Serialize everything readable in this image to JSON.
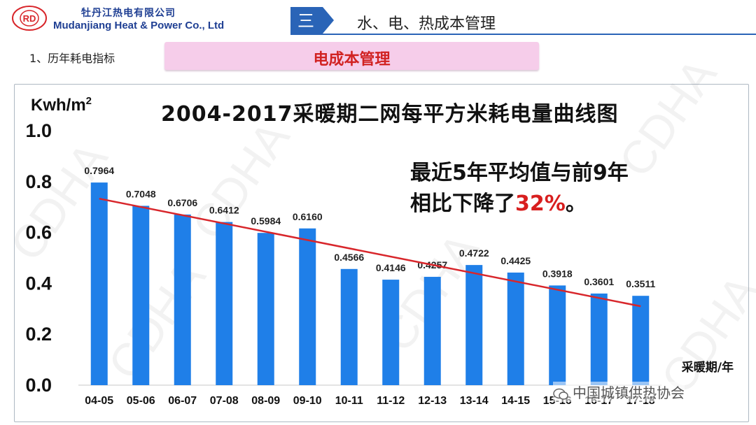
{
  "header": {
    "logo_text": "RD",
    "company_cn": "牡丹江热电有限公司",
    "company_en": "Mudanjiang Heat & Power  Co., Ltd",
    "section_numeral": "三",
    "section_title": "水、电、热成本管理"
  },
  "subtitle_left": "1、历年耗电指标",
  "pink_title": "电成本管理",
  "watermark_text": "CDHA",
  "wechat_label": "中国城镇供热协会",
  "colors": {
    "bar": "#1f7fe8",
    "trend": "#d8262b",
    "accent_red": "#d81e1e",
    "brand_blue": "#1f3f93"
  },
  "chart_data": {
    "type": "bar",
    "title": "2004-2017采暖期二网每平方米耗电量曲线图",
    "ylabel": "Kwh/m",
    "ylabel_sup": "2",
    "xlabel": "采暖期/年",
    "ylim": [
      0,
      1.0
    ],
    "yticks": [
      "0.0",
      "0.2",
      "0.4",
      "0.6",
      "0.8",
      "1.0"
    ],
    "categories": [
      "04-05",
      "05-06",
      "06-07",
      "07-08",
      "08-09",
      "09-10",
      "10-11",
      "11-12",
      "12-13",
      "13-14",
      "14-15",
      "15-16",
      "16-17",
      "17-18"
    ],
    "values": [
      0.7964,
      0.7048,
      0.6706,
      0.6412,
      0.5984,
      0.616,
      0.4566,
      0.4146,
      0.4257,
      0.4722,
      0.4425,
      0.3918,
      0.3601,
      0.3511
    ],
    "value_labels": [
      "0.7964",
      "0.7048",
      "0.6706",
      "0.6412",
      "0.5984",
      "0.6160",
      "0.4566",
      "0.4146",
      "0.4257",
      "0.4722",
      "0.4425",
      "0.3918",
      "0.3601",
      "0.3511"
    ],
    "trendline": {
      "start": 0.733,
      "end": 0.31
    },
    "grid": false,
    "annotation": {
      "line1": "最近5年平均值与前9年",
      "line2_prefix": "相比下降了",
      "line2_highlight": "32%",
      "line2_suffix": "。"
    }
  }
}
